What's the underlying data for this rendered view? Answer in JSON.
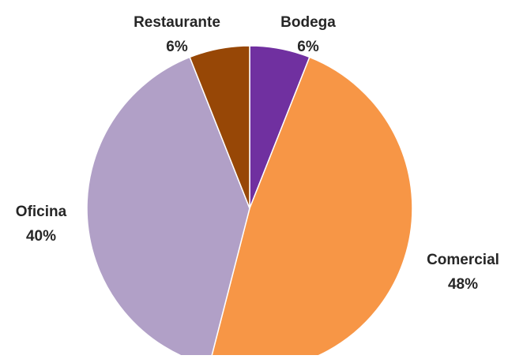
{
  "chart_data": {
    "type": "pie",
    "slices": [
      {
        "label": "Bodega",
        "value": 6,
        "display": "6%",
        "color": "#7030A0"
      },
      {
        "label": "Comercial",
        "value": 48,
        "display": "48%",
        "color": "#F79646"
      },
      {
        "label": "Oficina",
        "value": 40,
        "display": "40%",
        "color": "#B1A0C7"
      },
      {
        "label": "Restaurante",
        "value": 6,
        "display": "6%",
        "color": "#974706"
      }
    ],
    "start_angle_deg": 0,
    "direction": "clockwise",
    "legend": "none",
    "data_labels": "outside"
  }
}
